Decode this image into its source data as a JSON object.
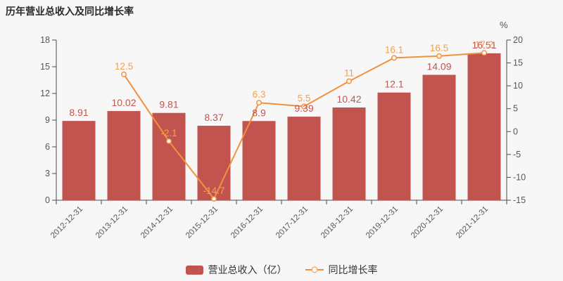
{
  "page": {
    "title": "历年营业总收入及同比增长率"
  },
  "colors": {
    "background": "#f7f7f8",
    "title": "#2a2a2a",
    "bar": "#c25450",
    "bar_label": "#c4544f",
    "line": "#f2913d",
    "line_label": "#f6a04b",
    "marker_fill": "#ffffff",
    "axis": "#494b52",
    "tick_label": "#55565c",
    "legend_text": "#333333"
  },
  "chart_data": {
    "type": "bar+line",
    "categories": [
      "2012-12-31",
      "2013-12-31",
      "2014-12-31",
      "2015-12-31",
      "2016-12-31",
      "2017-12-31",
      "2018-12-31",
      "2019-12-31",
      "2020-12-31",
      "2021-12-31"
    ],
    "series": [
      {
        "name": "营业总收入（亿）",
        "type": "bar",
        "y_axis": "left",
        "values": [
          8.91,
          10.02,
          9.81,
          8.37,
          8.9,
          9.39,
          10.42,
          12.1,
          14.09,
          16.51
        ],
        "labels": [
          "8.91",
          "10.02",
          "9.81",
          "8.37",
          "8.9",
          "9.39",
          "10.42",
          "12.1",
          "14.09",
          "16.51"
        ]
      },
      {
        "name": "同比增长率",
        "type": "line",
        "y_axis": "right",
        "values": [
          null,
          12.5,
          -2.1,
          -14.7,
          6.3,
          5.5,
          11,
          16.1,
          16.5,
          17.2
        ],
        "labels": [
          null,
          "12.5",
          "-2.1",
          "-14.7",
          "6.3",
          "5.5",
          "11",
          "16.1",
          "16.5",
          "17.2"
        ]
      }
    ],
    "left_axis": {
      "min": 0,
      "max": 18,
      "ticks": [
        "0",
        "3",
        "6",
        "9",
        "12",
        "15",
        "18"
      ]
    },
    "right_axis": {
      "min": -15,
      "max": 20,
      "unit": "%",
      "ticks": [
        "-15",
        "-10",
        "-5",
        "0",
        "5",
        "10",
        "15",
        "20"
      ]
    },
    "legend": [
      "营业总收入（亿）",
      "同比增长率"
    ],
    "legend_position": "bottom-center",
    "grid": "off",
    "x_label_rotation": -45
  }
}
